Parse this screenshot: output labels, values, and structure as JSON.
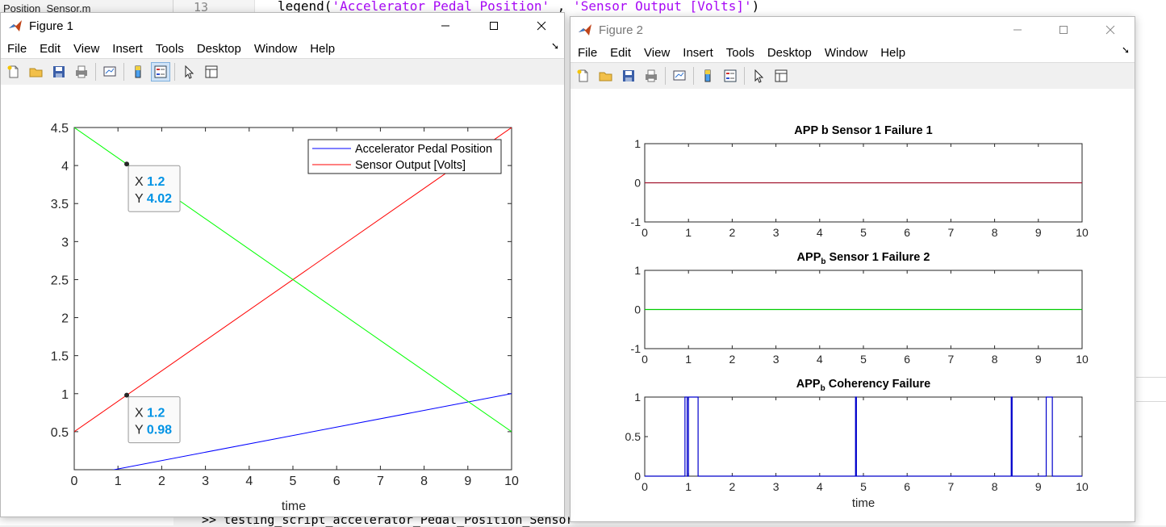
{
  "background": {
    "file_tab": "Position_Sensor.m",
    "line_number": "13",
    "code_fn": "legend(",
    "code_str1": "'Accelerator Pedal Position'",
    "code_mid": " , ",
    "code_str2": "'Sensor Output [Volts]'",
    "code_end": ")",
    "command_line": ">> testing_script_accelerator_Pedal_Position_Sensor"
  },
  "menu_items": [
    "File",
    "Edit",
    "View",
    "Insert",
    "Tools",
    "Desktop",
    "Window",
    "Help"
  ],
  "figure1": {
    "title": "Figure 1",
    "chart_data": {
      "type": "line",
      "xlabel": "time",
      "ylabel": "",
      "xlim": [
        0,
        10
      ],
      "ylim": [
        0,
        4.5
      ],
      "x_ticks": [
        "0",
        "1",
        "2",
        "3",
        "4",
        "5",
        "6",
        "7",
        "8",
        "9",
        "10"
      ],
      "y_ticks": [
        "0.5",
        "1",
        "1.5",
        "2",
        "2.5",
        "3",
        "3.5",
        "4",
        "4.5"
      ],
      "series": [
        {
          "name": "Accelerator Pedal Position",
          "color": "#0000ff",
          "x": [
            0,
            10
          ],
          "y": [
            -0.1,
            1.0
          ]
        },
        {
          "name": "Sensor Output [Volts]",
          "color": "#ff0000",
          "x": [
            0,
            10
          ],
          "y": [
            0.5,
            4.5
          ]
        },
        {
          "color": "#00ff00",
          "x": [
            0,
            10
          ],
          "y": [
            4.5,
            0.5
          ]
        }
      ],
      "legend": "top-right",
      "datatips": [
        {
          "x_label": "X",
          "x_value": "1.2",
          "y_label": "Y",
          "y_value": "4.02",
          "x": 1.2,
          "y": 4.02
        },
        {
          "x_label": "X",
          "x_value": "1.2",
          "y_label": "Y",
          "y_value": "0.98",
          "x": 1.2,
          "y": 0.98
        }
      ]
    }
  },
  "figure2": {
    "title": "Figure 2",
    "chart_data": [
      {
        "type": "line",
        "title_main": "APP b Sensor 1 Failure 1",
        "title_sub": "",
        "title_rest": "",
        "xlim": [
          0,
          10
        ],
        "ylim": [
          -1,
          1
        ],
        "x_ticks": [
          "0",
          "1",
          "2",
          "3",
          "4",
          "5",
          "6",
          "7",
          "8",
          "9",
          "10"
        ],
        "y_ticks": [
          "-1",
          "0",
          "1"
        ],
        "series": [
          {
            "color": "#a2142f",
            "x": [
              0,
              10
            ],
            "y": [
              0,
              0
            ]
          }
        ]
      },
      {
        "type": "line",
        "title_main": "APP",
        "title_sub": "b",
        "title_rest": " Sensor 1 Failure 2",
        "xlim": [
          0,
          10
        ],
        "ylim": [
          -1,
          1
        ],
        "x_ticks": [
          "0",
          "1",
          "2",
          "3",
          "4",
          "5",
          "6",
          "7",
          "8",
          "9",
          "10"
        ],
        "y_ticks": [
          "-1",
          "0",
          "1"
        ],
        "series": [
          {
            "color": "#00cc00",
            "x": [
              0,
              10
            ],
            "y": [
              0,
              0
            ]
          }
        ]
      },
      {
        "type": "line",
        "title_main": "APP",
        "title_sub": "b",
        "title_rest": " Coherency Failure",
        "xlabel": "time",
        "xlim": [
          0,
          10
        ],
        "ylim": [
          0,
          1
        ],
        "x_ticks": [
          "0",
          "1",
          "2",
          "3",
          "4",
          "5",
          "6",
          "7",
          "8",
          "9",
          "10"
        ],
        "y_ticks": [
          "0",
          "0.5",
          "1"
        ],
        "series": [
          {
            "color": "#0000cc",
            "x": [
              0,
              0.92,
              0.92,
              0.97,
              0.97,
              1.0,
              1.0,
              1.22,
              1.22,
              4.82,
              4.82,
              4.84,
              4.84,
              8.38,
              8.38,
              8.4,
              8.4,
              9.18,
              9.18,
              9.32,
              9.32,
              10
            ],
            "y": [
              0,
              0,
              1,
              1,
              0,
              0,
              1,
              1,
              0,
              0,
              1,
              1,
              0,
              0,
              1,
              1,
              0,
              0,
              1,
              1,
              0,
              0
            ]
          }
        ]
      }
    ]
  }
}
